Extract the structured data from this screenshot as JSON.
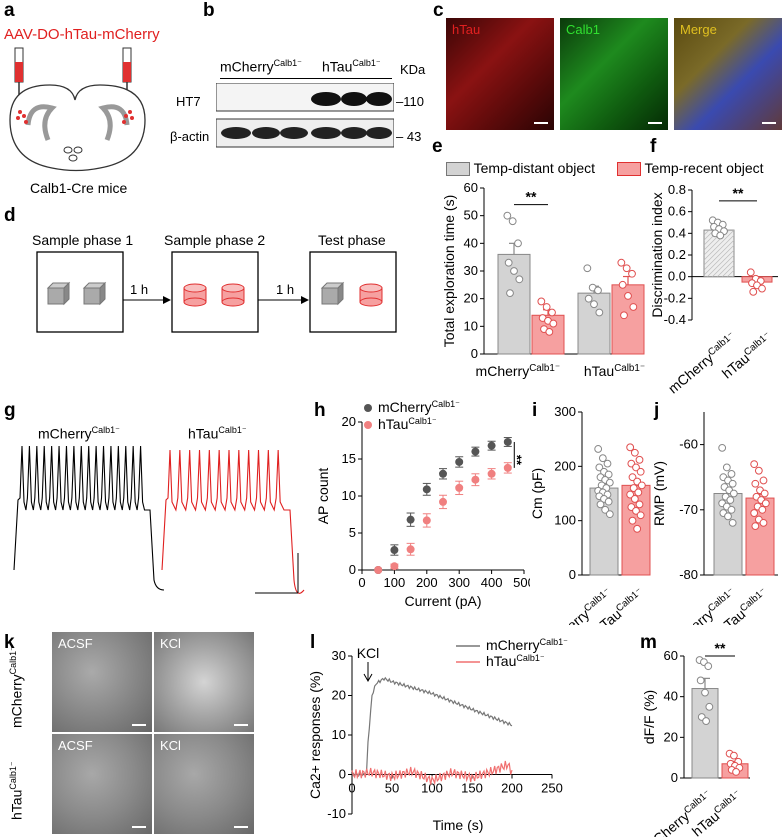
{
  "panels": {
    "a": {
      "label": "a",
      "injection": "AAV-DO-hTau-mCherry",
      "mouse": "Calb1-Cre mice"
    },
    "b": {
      "label": "b",
      "group1": "mCherry",
      "group2": "hTau",
      "sup": "Calb1⁻",
      "unit": "KDa",
      "rows": [
        {
          "name": "HT7",
          "mw": "110"
        },
        {
          "name": "β-actin",
          "mw": "43"
        }
      ]
    },
    "c": {
      "label": "c",
      "channels": [
        "hTau",
        "Calb1",
        "Merge"
      ],
      "colors": [
        "#e02020",
        "#28e028",
        "#e0c020"
      ]
    },
    "d": {
      "label": "d",
      "phases": [
        "Sample phase 1",
        "Sample phase 2",
        "Test phase"
      ],
      "interval": "1 h"
    },
    "e": {
      "label": "e"
    },
    "f": {
      "label": "f"
    },
    "g": {
      "label": "g",
      "trace1": "mCherry",
      "trace2": "hTau",
      "sup": "Calb1⁻"
    },
    "h": {
      "label": "h",
      "sig": "**"
    },
    "i": {
      "label": "i"
    },
    "j": {
      "label": "j"
    },
    "k": {
      "label": "k",
      "row1": "mCherry",
      "row2": "hTau",
      "sup": "Calb1⁻",
      "conds": [
        "ACSF",
        "KCl",
        "ACSF",
        "KCl"
      ]
    },
    "l": {
      "label": "l",
      "stim": "KCl"
    },
    "m": {
      "label": "m"
    }
  },
  "legend_e": {
    "items": [
      {
        "name": "Temp-distant object",
        "color": "#d3d3d3"
      },
      {
        "name": "Temp-recent object",
        "color": "#f6a0a0"
      }
    ]
  },
  "chart_data": [
    {
      "panel": "e",
      "type": "bar",
      "ylabel": "Total exploration time (s)",
      "ylim": [
        0,
        60
      ],
      "yticks": [
        0,
        10,
        20,
        30,
        40,
        50,
        60
      ],
      "categories": [
        "mCherry",
        "hTau"
      ],
      "sup": "Calb1⁻",
      "series": [
        {
          "name": "Temp-distant object",
          "values": [
            36,
            22
          ],
          "errors": [
            4,
            2.5
          ],
          "points": [
            [
              50,
              48,
              40,
              33,
              30,
              27,
              22
            ],
            [
              31,
              24,
              23,
              20,
              18,
              15
            ]
          ]
        },
        {
          "name": "Temp-recent object",
          "values": [
            14,
            25
          ],
          "errors": [
            2,
            3
          ],
          "points": [
            [
              19,
              17,
              15,
              13,
              12,
              11,
              9,
              8
            ],
            [
              33,
              31,
              29,
              25,
              21,
              17,
              14
            ]
          ]
        }
      ],
      "sig": "**"
    },
    {
      "panel": "f",
      "type": "bar",
      "ylabel": "Discrimination index",
      "ylim": [
        -0.4,
        0.8
      ],
      "yticks": [
        -0.4,
        -0.2,
        0.0,
        0.2,
        0.4,
        0.6,
        0.8
      ],
      "categories": [
        "mCherry",
        "hTau"
      ],
      "sup": "Calb1⁻",
      "values": [
        0.43,
        -0.05
      ],
      "errors": [
        0.03,
        0.04
      ],
      "points": [
        [
          0.52,
          0.5,
          0.48,
          0.46,
          0.44,
          0.42,
          0.4,
          0.38
        ],
        [
          0.04,
          -0.02,
          -0.04,
          -0.06,
          -0.08,
          -0.11,
          -0.14
        ]
      ],
      "sig": "**"
    },
    {
      "panel": "h",
      "type": "scatter",
      "xlabel": "Current (pA)",
      "ylabel": "AP count",
      "xlim": [
        0,
        500
      ],
      "ylim": [
        0,
        20
      ],
      "xticks": [
        0,
        100,
        200,
        300,
        400,
        500
      ],
      "yticks": [
        0,
        5,
        10,
        15,
        20
      ],
      "series": [
        {
          "name": "mCherry",
          "color": "#555555",
          "x": [
            50,
            100,
            150,
            200,
            250,
            300,
            350,
            400,
            450
          ],
          "y": [
            0,
            2.7,
            6.8,
            10.9,
            13,
            14.6,
            16,
            16.8,
            17.3
          ],
          "err": [
            0,
            0.7,
            0.9,
            0.8,
            0.7,
            0.7,
            0.6,
            0.6,
            0.6
          ]
        },
        {
          "name": "hTau",
          "color": "#f08080",
          "x": [
            50,
            100,
            150,
            200,
            250,
            300,
            350,
            400,
            450
          ],
          "y": [
            0,
            0.5,
            2.8,
            6.7,
            9.2,
            11.1,
            12.2,
            13,
            13.8
          ],
          "err": [
            0,
            0.3,
            0.8,
            0.9,
            0.9,
            0.9,
            0.8,
            0.7,
            0.7
          ]
        }
      ],
      "legend_sup": "Calb1⁻"
    },
    {
      "panel": "i",
      "type": "bar",
      "ylabel": "Cm (pF)",
      "ylim": [
        0,
        300
      ],
      "yticks": [
        0,
        100,
        200,
        300
      ],
      "categories": [
        "mCherry",
        "hTau"
      ],
      "sup": "Calb1⁻",
      "values": [
        160,
        165
      ],
      "errors": [
        8,
        10
      ],
      "points": [
        [
          232,
          215,
          205,
          198,
          190,
          185,
          180,
          175,
          170,
          165,
          160,
          155,
          152,
          148,
          145,
          140,
          135,
          130,
          120,
          112
        ],
        [
          235,
          225,
          212,
          205,
          198,
          190,
          180,
          172,
          165,
          160,
          152,
          148,
          140,
          130,
          125,
          118,
          110,
          100,
          85
        ]
      ]
    },
    {
      "panel": "j",
      "type": "bar",
      "ylabel": "RMP (mV)",
      "ylim": [
        -80,
        -55
      ],
      "yticks": [
        -80,
        -70,
        -60
      ],
      "categories": [
        "mCherry",
        "hTau"
      ],
      "sup": "Calb1⁻",
      "values": [
        -67.5,
        -68.2
      ],
      "errors": [
        0.6,
        0.6
      ],
      "points": [
        [
          -60.5,
          -63.5,
          -64.5,
          -65,
          -65.5,
          -66,
          -66.5,
          -67,
          -67.5,
          -68,
          -68.5,
          -69,
          -69.5,
          -70,
          -70.5,
          -71,
          -72
        ],
        [
          -63,
          -64,
          -65.5,
          -66,
          -67,
          -67.5,
          -68,
          -68.5,
          -69,
          -69.5,
          -70,
          -70.5,
          -71.5,
          -72,
          -72.5
        ]
      ]
    },
    {
      "panel": "l",
      "type": "line",
      "xlabel": "Time (s)",
      "ylabel": "Ca2+ responses (%)",
      "xlim": [
        0,
        250
      ],
      "ylim": [
        -10,
        30
      ],
      "xticks": [
        0,
        50,
        100,
        150,
        200,
        250
      ],
      "yticks": [
        -10,
        0,
        10,
        20,
        30
      ],
      "series": [
        {
          "name": "mCherry",
          "color": "#777777",
          "x": [
            0,
            18,
            20,
            25,
            30,
            40,
            50,
            75,
            100,
            125,
            150,
            175,
            200
          ],
          "y": [
            0,
            0,
            8,
            20,
            23,
            24.3,
            23.5,
            22,
            20.5,
            18.5,
            16.5,
            14.5,
            12.5
          ]
        },
        {
          "name": "hTau",
          "color": "#f07070",
          "x": [
            0,
            25,
            50,
            75,
            100,
            125,
            150,
            175,
            195,
            200
          ],
          "y": [
            0,
            0.5,
            -0.5,
            0.8,
            -1.5,
            0.5,
            -0.8,
            0.8,
            2.5,
            0.5
          ]
        }
      ],
      "legend_sup": "Calb1⁻"
    },
    {
      "panel": "m",
      "type": "bar",
      "ylabel": "dF/F (%)",
      "ylim": [
        0,
        60
      ],
      "yticks": [
        0,
        20,
        40,
        60
      ],
      "categories": [
        "mCherry",
        "hTau"
      ],
      "sup": "Calb1⁻",
      "values": [
        44,
        7
      ],
      "errors": [
        5,
        1.2
      ],
      "points": [
        [
          58,
          57,
          55,
          48,
          42,
          35,
          30,
          28
        ],
        [
          12,
          11,
          8,
          7,
          6,
          5,
          4,
          3
        ]
      ],
      "sig": "**"
    }
  ]
}
